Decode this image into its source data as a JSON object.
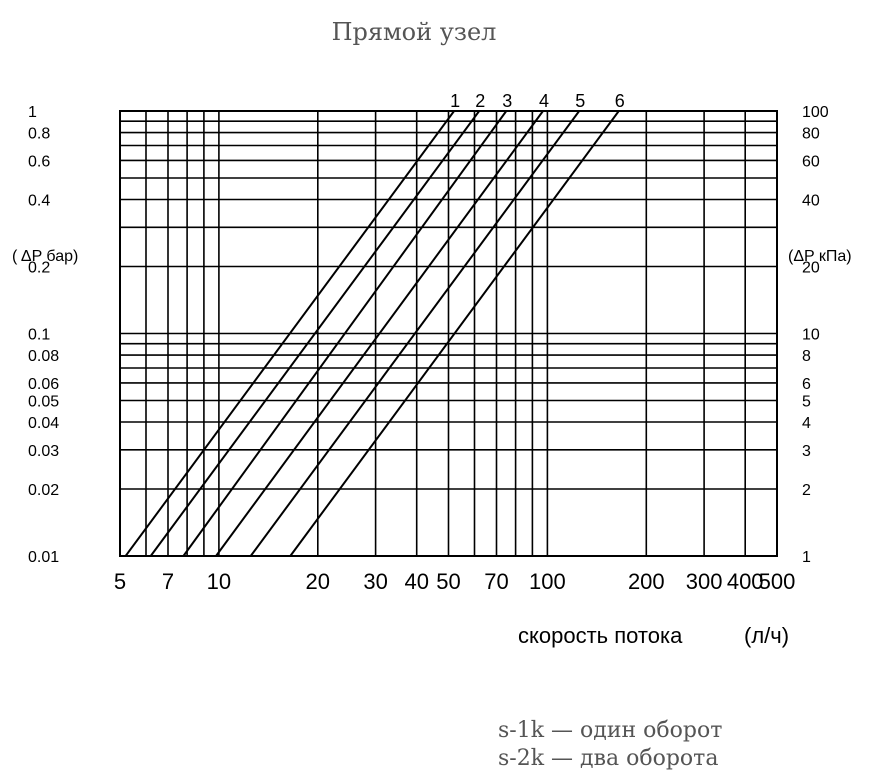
{
  "chart_data": {
    "type": "line",
    "title": "Прямой узел",
    "xlabel": "скорость потока",
    "xlabel_unit": "(л/ч)",
    "ylabel_left": "( ΔP бар)",
    "ylabel_right": "(ΔP кПа)",
    "x_scale": "log",
    "y_scale": "log",
    "xlim": [
      5,
      500
    ],
    "ylim": [
      0.01,
      1
    ],
    "grid": true,
    "x_ticks": [
      5,
      7,
      10,
      20,
      30,
      40,
      50,
      70,
      100,
      200,
      300,
      400,
      500
    ],
    "x_tick_labels": [
      "5",
      "7",
      "10",
      "20",
      "30",
      "40",
      "50",
      "70",
      "100",
      "200",
      "300",
      "400",
      "500"
    ],
    "y_ticks_left": [
      1,
      0.8,
      0.6,
      0.4,
      0.2,
      0.1,
      0.08,
      0.06,
      0.05,
      0.04,
      0.03,
      0.02,
      0.01
    ],
    "y_tick_labels_left": [
      "1",
      "0.8",
      "0.6",
      "0.4",
      "0.2",
      "0.1",
      "0.08",
      "0.06",
      "0.05",
      "0.04",
      "0.03",
      "0.02",
      "0.01"
    ],
    "y_tick_labels_right": [
      "100",
      "80",
      "60",
      "40",
      "20",
      "10",
      "8",
      "6",
      "5",
      "4",
      "3",
      "2",
      "1"
    ],
    "series": [
      {
        "name": "1",
        "points": [
          [
            5.2,
            0.01
          ],
          [
            52,
            1
          ]
        ]
      },
      {
        "name": "2",
        "points": [
          [
            6.2,
            0.01
          ],
          [
            62,
            1
          ]
        ]
      },
      {
        "name": "3",
        "points": [
          [
            7.8,
            0.01
          ],
          [
            75,
            1
          ]
        ]
      },
      {
        "name": "4",
        "points": [
          [
            9.8,
            0.01
          ],
          [
            97,
            1
          ]
        ]
      },
      {
        "name": "5",
        "points": [
          [
            12.5,
            0.01
          ],
          [
            125,
            1
          ]
        ]
      },
      {
        "name": "6",
        "points": [
          [
            16.5,
            0.01
          ],
          [
            165,
            1
          ]
        ]
      }
    ]
  },
  "legend": [
    "s-1k — один оборот",
    "s-2k — два оборота"
  ]
}
